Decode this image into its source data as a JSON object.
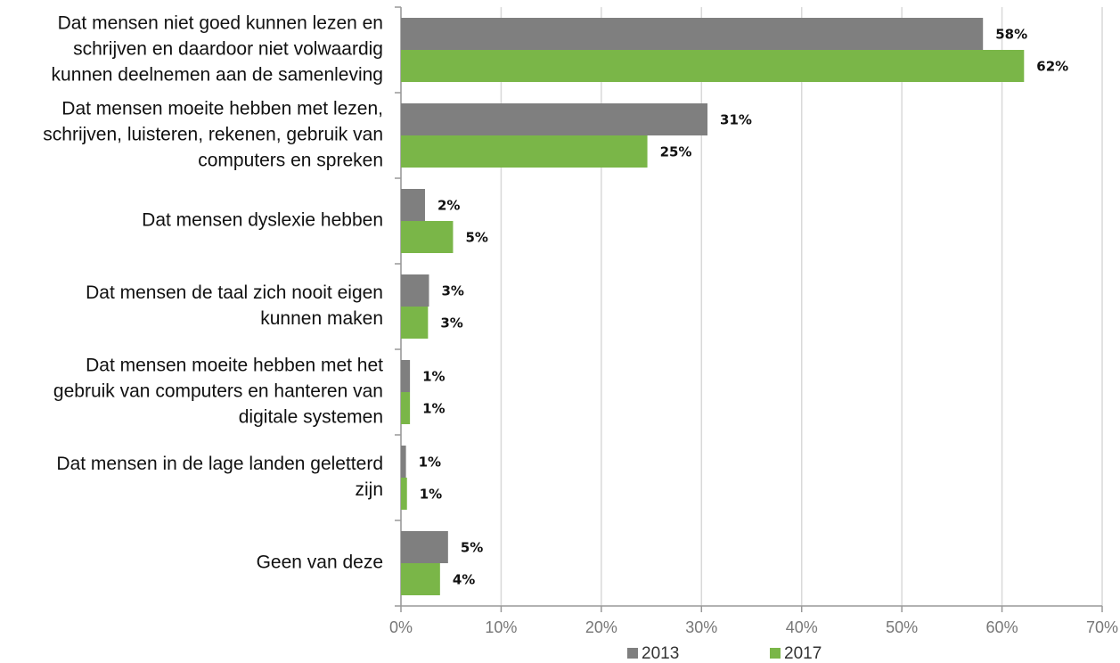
{
  "chart_data": {
    "type": "bar",
    "orientation": "horizontal",
    "categories": [
      [
        "Dat mensen niet goed kunnen lezen en",
        "schrijven en daardoor niet volwaardig",
        "kunnen deelnemen aan de samenleving"
      ],
      [
        "Dat mensen moeite hebben met lezen,",
        "schrijven, luisteren, rekenen, gebruik van",
        "computers en spreken"
      ],
      [
        "Dat mensen dyslexie hebben"
      ],
      [
        "Dat mensen de taal zich nooit eigen",
        "kunnen maken"
      ],
      [
        "Dat mensen moeite hebben met het",
        "gebruik van computers en hanteren van",
        "digitale systemen"
      ],
      [
        "Dat mensen in de lage landen geletterd",
        "zijn"
      ],
      [
        "Geen van deze"
      ]
    ],
    "series": [
      {
        "name": "2013",
        "color": "#7f7f7f",
        "values": [
          58.1,
          30.6,
          2.4,
          2.8,
          0.9,
          0.5,
          4.7
        ],
        "value_labels": [
          "58%",
          "31%",
          "2%",
          "3%",
          "1%",
          "1%",
          "5%"
        ]
      },
      {
        "name": "2017",
        "color": "#7ab648",
        "values": [
          62.2,
          24.6,
          5.2,
          2.7,
          0.9,
          0.6,
          3.9
        ],
        "value_labels": [
          "62%",
          "25%",
          "5%",
          "3%",
          "1%",
          "1%",
          "4%"
        ]
      }
    ],
    "xlim": [
      0,
      70
    ],
    "xticks": [
      {
        "value": 0,
        "label": "0%"
      },
      {
        "value": 10,
        "label": "10%"
      },
      {
        "value": 20,
        "label": "20%"
      },
      {
        "value": 30,
        "label": "30%"
      },
      {
        "value": 40,
        "label": "40%"
      },
      {
        "value": 50,
        "label": "50%"
      },
      {
        "value": 60,
        "label": "60%"
      },
      {
        "value": 70,
        "label": "70%"
      }
    ],
    "grid": true,
    "legend": "bottom"
  }
}
